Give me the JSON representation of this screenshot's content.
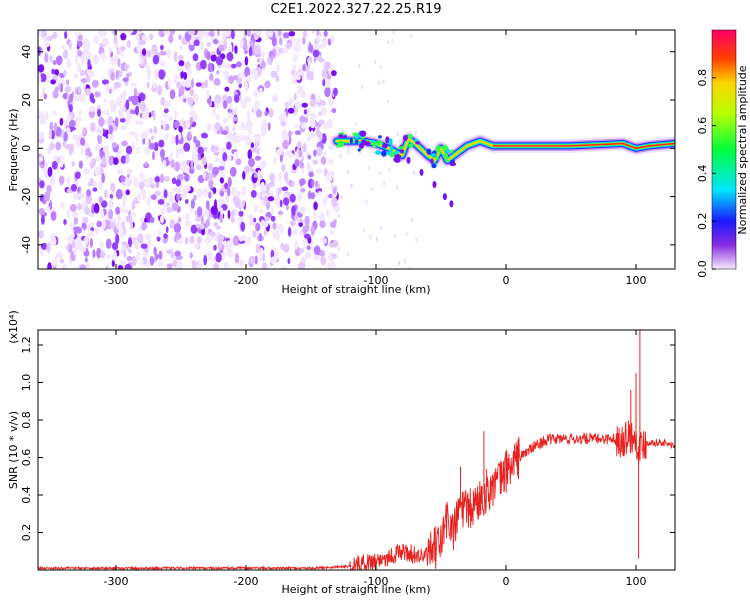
{
  "title": "C2E1.2022.327.22.25.R19",
  "chart_data": [
    {
      "type": "heatmap",
      "xlabel": "Height of straight line (km)",
      "ylabel": "Frequency (Hz)",
      "xlim": [
        -360,
        130
      ],
      "ylim": [
        -50,
        49
      ],
      "xticks": [
        -300,
        -200,
        -100,
        0,
        100
      ],
      "yticks": [
        -40,
        -20,
        0,
        20,
        40
      ],
      "colorbar": {
        "label": "Normalized spectral amplitude",
        "range": [
          0,
          1
        ],
        "ticks": [
          "0.0",
          "0.2",
          "0.4",
          "0.6",
          "0.8"
        ]
      },
      "signal_track": {
        "x": [
          -130,
          -110,
          -100,
          -90,
          -80,
          -75,
          -70,
          -60,
          -55,
          -50,
          -45,
          -40,
          -30,
          -20,
          -10,
          0,
          50,
          90,
          100,
          110,
          130
        ],
        "y": [
          3,
          3,
          2,
          0,
          -3,
          4,
          2,
          -3,
          -5,
          0,
          -5,
          -3,
          1,
          3,
          1,
          1,
          1,
          2,
          0,
          1,
          2
        ]
      },
      "noise_region": {
        "x_start": -360,
        "x_end": -130
      }
    },
    {
      "type": "line",
      "xlabel": "Height of straight line (km)",
      "ylabel": "SNR (10 * v/v)",
      "y_multiplier": "(x10⁴)",
      "xlim": [
        -360,
        130
      ],
      "ylim": [
        0,
        1.28
      ],
      "xticks": [
        -300,
        -200,
        -100,
        0,
        100
      ],
      "yticks": [
        "0.2",
        "0.4",
        "0.6",
        "0.8",
        "1.0",
        "1.2"
      ],
      "color": "#e8201e",
      "envelope": {
        "x": [
          -360,
          -150,
          -120,
          -100,
          -90,
          -80,
          -70,
          -60,
          -50,
          -45,
          -40,
          -35,
          -30,
          -20,
          -15,
          -10,
          -5,
          0,
          10,
          20,
          30,
          40,
          60,
          80,
          90,
          95,
          100,
          102,
          104,
          106,
          110,
          120,
          130
        ],
        "y": [
          0.01,
          0.01,
          0.02,
          0.05,
          0.07,
          0.1,
          0.08,
          0.07,
          0.15,
          0.28,
          0.2,
          0.35,
          0.3,
          0.38,
          0.42,
          0.45,
          0.47,
          0.53,
          0.6,
          0.65,
          0.69,
          0.7,
          0.7,
          0.7,
          0.7,
          0.72,
          0.7,
          0.66,
          0.65,
          0.68,
          0.68,
          0.68,
          0.66
        ]
      },
      "spikes": [
        {
          "x": -35,
          "y": 0.55
        },
        {
          "x": -17,
          "y": 0.74
        },
        {
          "x": 96,
          "y": 0.96
        },
        {
          "x": 100,
          "y": 1.05
        },
        {
          "x": 102,
          "y": 0.06
        },
        {
          "x": 103,
          "y": 1.28
        }
      ]
    }
  ]
}
